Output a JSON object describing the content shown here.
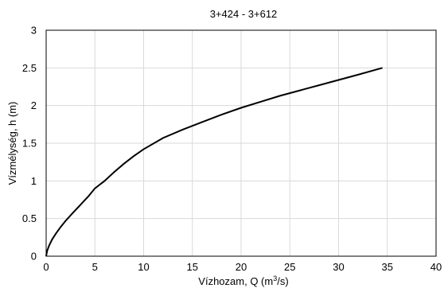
{
  "chart_data": {
    "type": "line",
    "title": "3+424 - 3+612",
    "xlabel": "Vízhozam, Q (m³/s)",
    "ylabel": "Vízmélység, h (m)",
    "xlim": [
      0,
      40
    ],
    "ylim": [
      0,
      3
    ],
    "x_ticks": [
      "0",
      "5",
      "10",
      "15",
      "20",
      "25",
      "30",
      "35",
      "40"
    ],
    "y_ticks": [
      "0",
      "0.5",
      "1",
      "1.5",
      "2",
      "2.5",
      "3"
    ],
    "grid": true,
    "series": [
      {
        "color": "#000000",
        "x": [
          0,
          0.1,
          0.3,
          0.6,
          1,
          1.5,
          2,
          2.7,
          3.5,
          4.3,
          5,
          6,
          7,
          8,
          9,
          10,
          12,
          14,
          16,
          18,
          20,
          22,
          24,
          26,
          28,
          30,
          32,
          34.5
        ],
        "y": [
          0,
          0.07,
          0.14,
          0.22,
          0.3,
          0.39,
          0.47,
          0.57,
          0.68,
          0.79,
          0.9,
          1.0,
          1.12,
          1.23,
          1.33,
          1.42,
          1.57,
          1.68,
          1.78,
          1.88,
          1.97,
          2.05,
          2.13,
          2.2,
          2.27,
          2.34,
          2.41,
          2.5
        ]
      }
    ]
  }
}
